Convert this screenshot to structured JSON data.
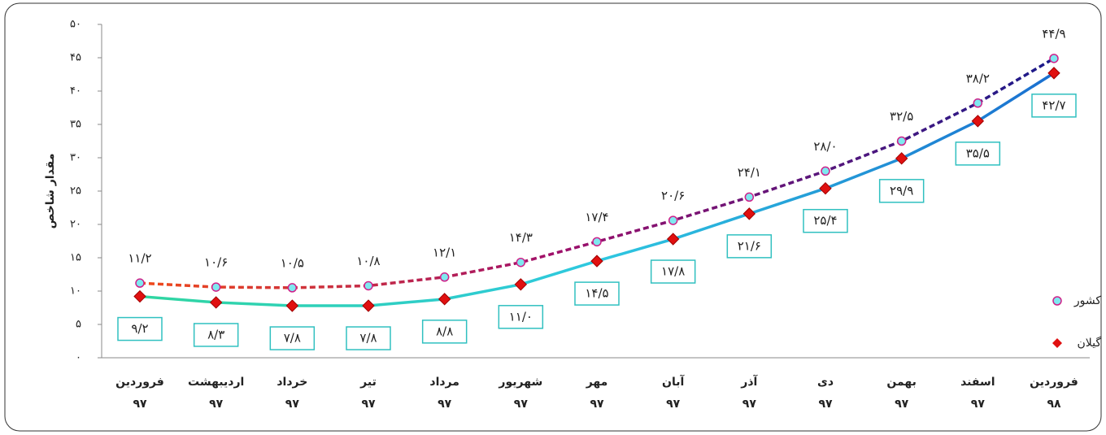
{
  "chart_data": {
    "type": "line",
    "ylabel": "مقدار شاخص",
    "categories": [
      "فروردین\n۹۷",
      "اردیبهشت\n۹۷",
      "خرداد\n۹۷",
      "تیر\n۹۷",
      "مرداد\n۹۷",
      "شهریور\n۹۷",
      "مهر\n۹۷",
      "آبان\n۹۷",
      "آذر\n۹۷",
      "دی\n۹۷",
      "بهمن\n۹۷",
      "اسفند\n۹۷",
      "فروردین\n۹۸"
    ],
    "series": [
      {
        "name": "کشور",
        "color": "#6a1b8a",
        "values": [
          11.2,
          10.6,
          10.5,
          10.8,
          12.1,
          14.3,
          17.4,
          20.6,
          24.1,
          28.0,
          32.5,
          38.2,
          44.9
        ],
        "value_labels": [
          "۱۱/۲",
          "۱۰/۶",
          "۱۰/۵",
          "۱۰/۸",
          "۱۲/۱",
          "۱۴/۳",
          "۱۷/۴",
          "۲۰/۶",
          "۲۴/۱",
          "۲۸/۰",
          "۳۲/۵",
          "۳۸/۲",
          "۴۴/۹"
        ]
      },
      {
        "name": "گیلان",
        "color": "#1a8fd6",
        "values": [
          9.2,
          8.3,
          7.8,
          7.8,
          8.8,
          11.0,
          14.5,
          17.8,
          21.6,
          25.4,
          29.9,
          35.5,
          42.7
        ],
        "value_labels": [
          "۹/۲",
          "۸/۳",
          "۷/۸",
          "۷/۸",
          "۸/۸",
          "۱۱/۰",
          "۱۴/۵",
          "۱۷/۸",
          "۲۱/۶",
          "۲۵/۴",
          "۲۹/۹",
          "۳۵/۵",
          "۴۲/۷"
        ]
      }
    ],
    "ylim": [
      0,
      50
    ],
    "yticks": [
      {
        "value": 0,
        "label": "۰"
      },
      {
        "value": 5,
        "label": "۵"
      },
      {
        "value": 10,
        "label": "۱۰"
      },
      {
        "value": 15,
        "label": "۱۵"
      },
      {
        "value": 20,
        "label": "۲۰"
      },
      {
        "value": 25,
        "label": "۲۵"
      },
      {
        "value": 30,
        "label": "۳۰"
      },
      {
        "value": 35,
        "label": "۳۵"
      },
      {
        "value": 40,
        "label": "۴۰"
      },
      {
        "value": 45,
        "label": "۴۵"
      },
      {
        "value": 50,
        "label": "۵۰"
      }
    ],
    "grid": false,
    "legend": "right"
  }
}
